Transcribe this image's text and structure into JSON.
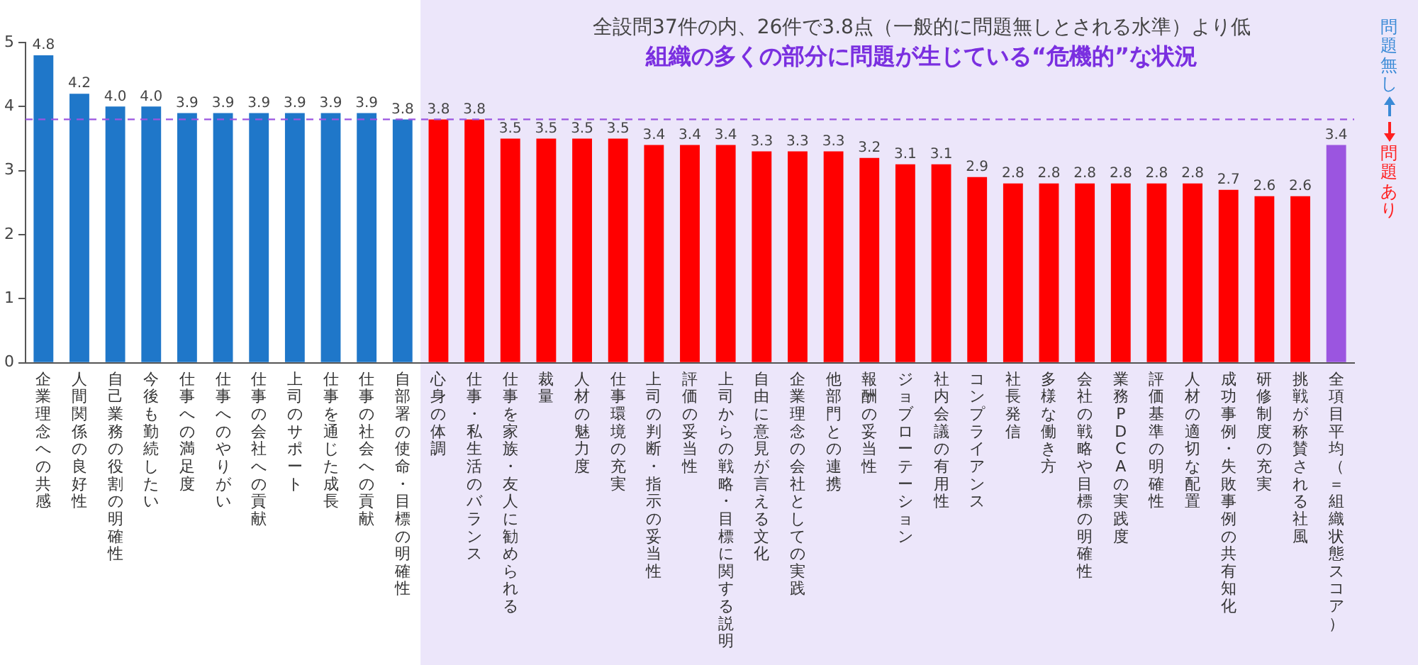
{
  "chart_data": {
    "type": "bar",
    "title": "組織の多くの部分に問題が生じている“危機的”な状況",
    "subtitle": "全設問37件の内、26件で3.8点（一般的に問題無しとされる水準）より低",
    "categories": [
      "企業理念への共感",
      "人間関係の良好性",
      "自己業務の役割の明確性",
      "今後も勤続したい",
      "仕事への満足度",
      "仕事へのやりがい",
      "仕事の会社への貢献",
      "上司のサポート",
      "仕事を通じた成長",
      "仕事の社会への貢献",
      "自部署の使命・目標の明確性",
      "心身の体調",
      "仕事・私生活のバランス",
      "仕事を家族・友人に勧められる",
      "裁量",
      "人材の魅力度",
      "仕事環境の充実",
      "上司の判断・指示の妥当性",
      "評価の妥当性",
      "上司からの戦略・目標に関する説明",
      "自由に意見が言える文化",
      "企業理念の会社としての実践",
      "他部門との連携",
      "報酬の妥当性",
      "ジョブローテーション",
      "社内会議の有用性",
      "コンプライアンス",
      "社長発信",
      "多様な働き方",
      "会社の戦略や目標の明確性",
      "業務PDCAの実践度",
      "評価基準の明確性",
      "人材の適切な配置",
      "成功事例・失敗事例の共有知化",
      "研修制度の充実",
      "挑戦が称賛される社風",
      "全項目平均（＝組織状態スコア）"
    ],
    "values": [
      4.8,
      4.2,
      4.0,
      4.0,
      3.9,
      3.9,
      3.9,
      3.9,
      3.9,
      3.9,
      3.8,
      3.8,
      3.8,
      3.5,
      3.5,
      3.5,
      3.5,
      3.4,
      3.4,
      3.4,
      3.3,
      3.3,
      3.3,
      3.2,
      3.1,
      3.1,
      2.9,
      2.8,
      2.8,
      2.8,
      2.8,
      2.8,
      2.8,
      2.7,
      2.6,
      2.6,
      3.4
    ],
    "colors": [
      "#1f77c9",
      "#1f77c9",
      "#1f77c9",
      "#1f77c9",
      "#1f77c9",
      "#1f77c9",
      "#1f77c9",
      "#1f77c9",
      "#1f77c9",
      "#1f77c9",
      "#1f77c9",
      "#ff0000",
      "#ff0000",
      "#ff0000",
      "#ff0000",
      "#ff0000",
      "#ff0000",
      "#ff0000",
      "#ff0000",
      "#ff0000",
      "#ff0000",
      "#ff0000",
      "#ff0000",
      "#ff0000",
      "#ff0000",
      "#ff0000",
      "#ff0000",
      "#ff0000",
      "#ff0000",
      "#ff0000",
      "#ff0000",
      "#ff0000",
      "#ff0000",
      "#ff0000",
      "#ff0000",
      "#ff0000",
      "#9b55e0"
    ],
    "ylim": [
      0,
      5
    ],
    "yticks": [
      0,
      1,
      2,
      3,
      4,
      5
    ],
    "value_labels": [
      "4.8",
      "4.2",
      "4.0",
      "4.0",
      "3.9",
      "3.9",
      "3.9",
      "3.9",
      "3.9",
      "3.9",
      "3.8",
      "3.8",
      "3.8",
      "3.5",
      "3.5",
      "3.5",
      "3.5",
      "3.4",
      "3.4",
      "3.4",
      "3.3",
      "3.3",
      "3.3",
      "3.2",
      "3.1",
      "3.1",
      "2.9",
      "2.8",
      "2.8",
      "2.8",
      "2.8",
      "2.8",
      "2.8",
      "2.7",
      "2.6",
      "2.6",
      "3.4"
    ],
    "ref_lines": [
      {
        "axis": "y",
        "value": 3.8,
        "color": "#9b55e0",
        "line_style": "dashed"
      }
    ],
    "bands": [
      {
        "axis": "x",
        "from": "心身の体調",
        "to": "全項目平均（＝組織状態スコア）",
        "color": "#ece6fa"
      }
    ],
    "annotations": [
      "問題無し",
      "問題あり"
    ]
  }
}
